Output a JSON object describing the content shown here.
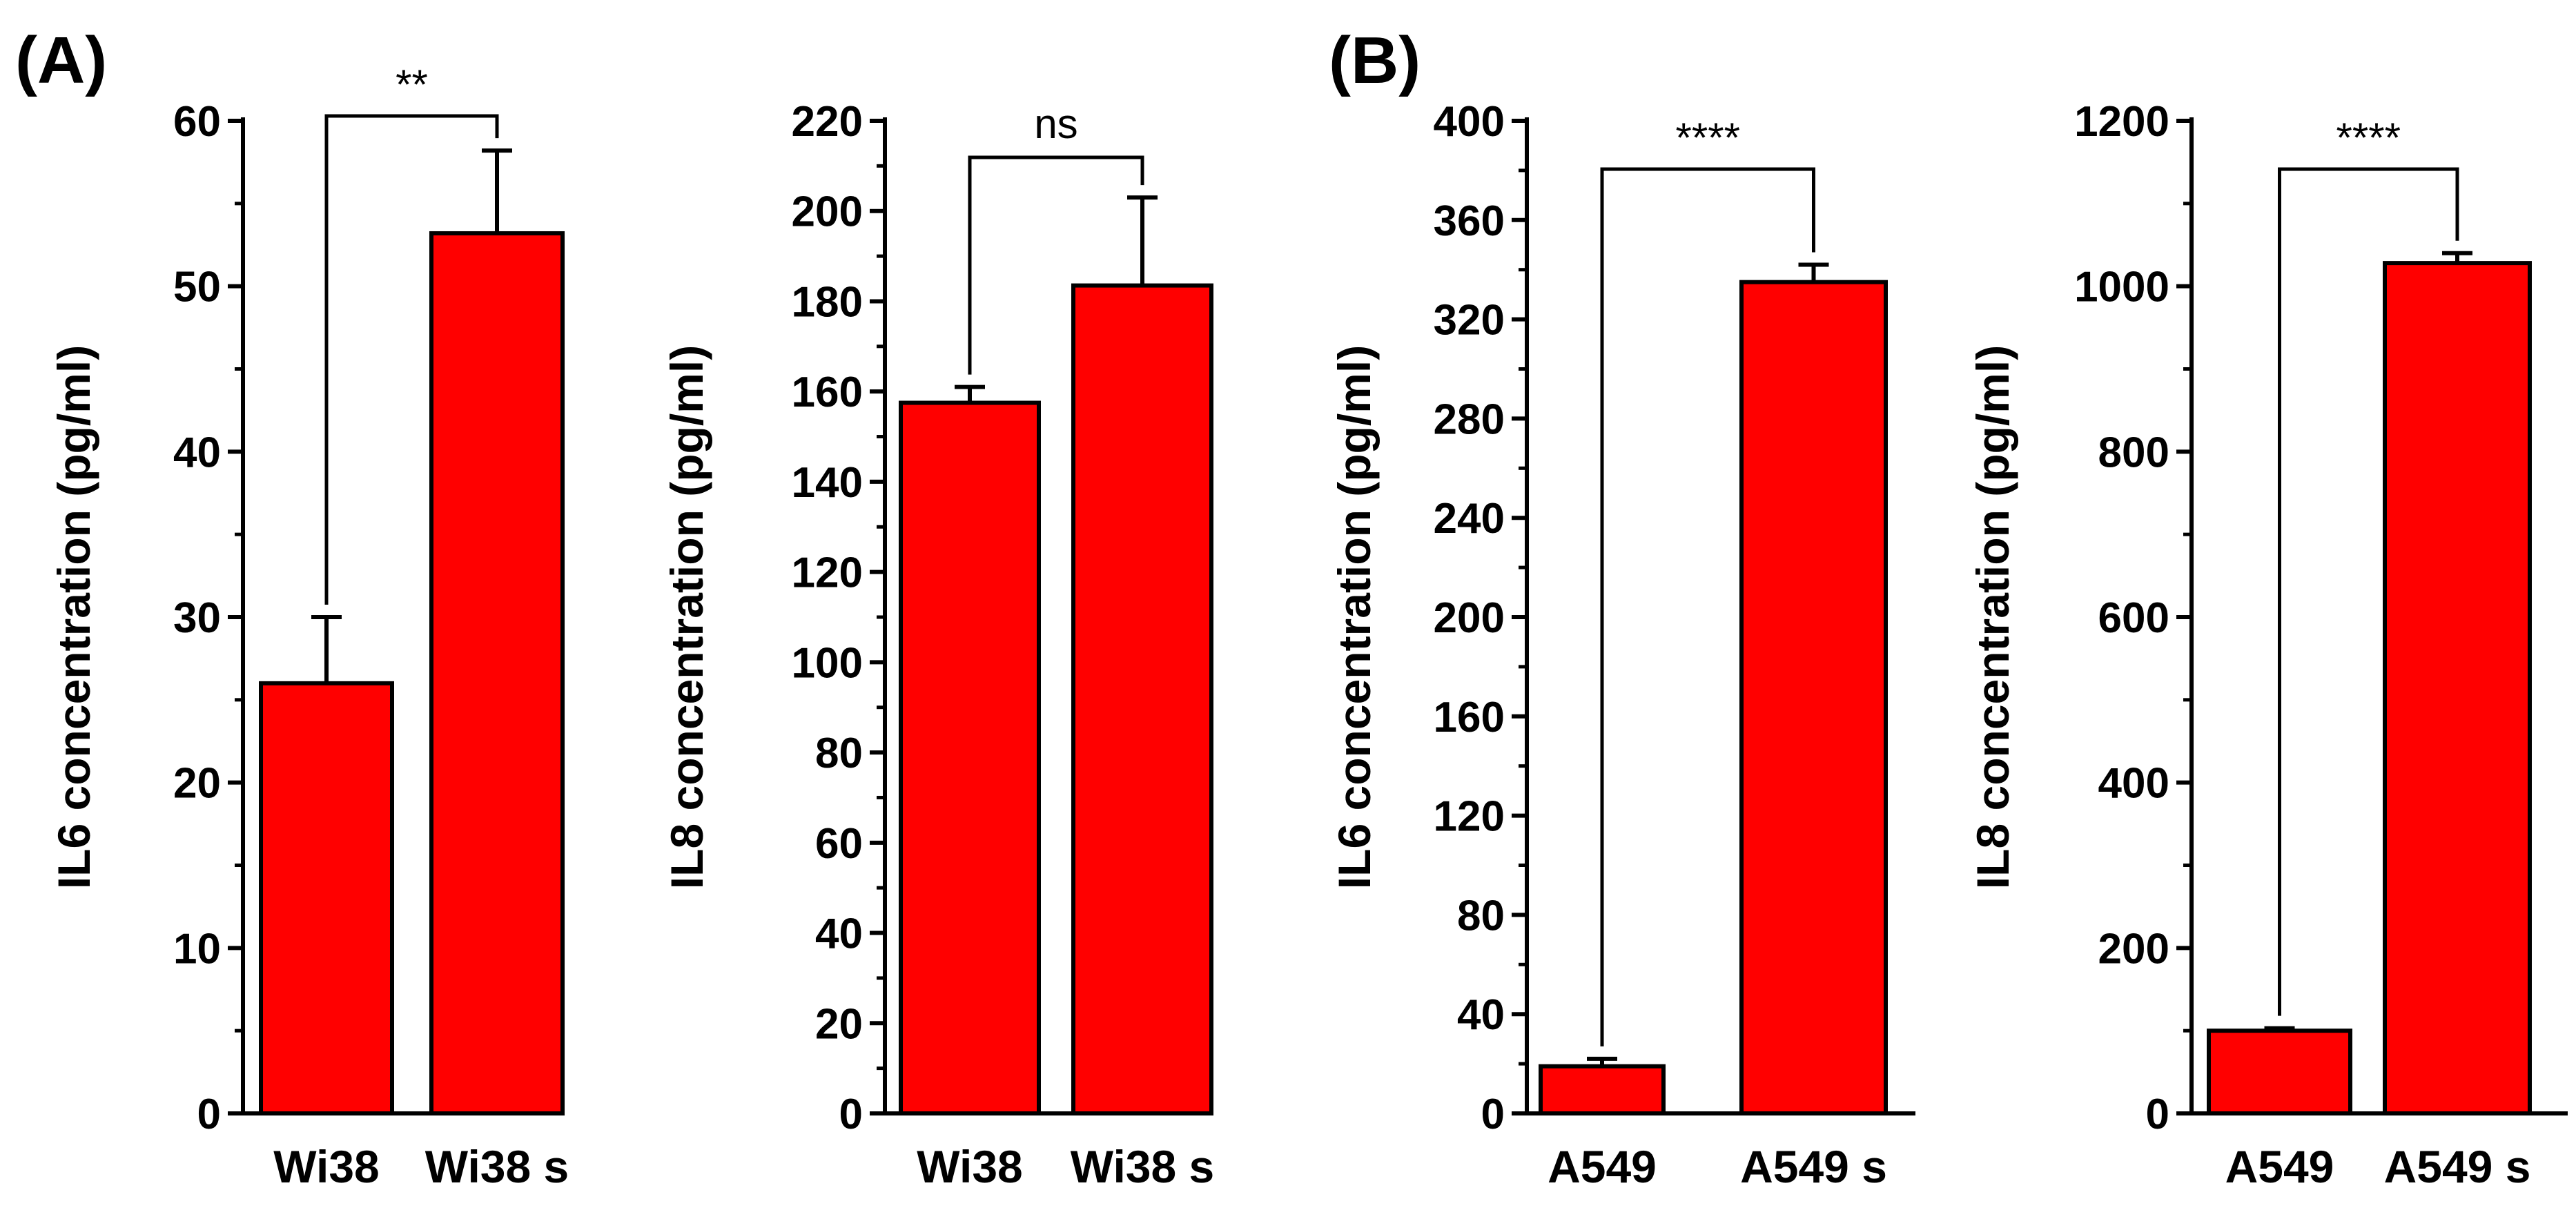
{
  "panel_labels": [
    "(A)",
    "(B)"
  ],
  "colors": {
    "bar": "#ff0000",
    "stroke": "#000000"
  },
  "chart_data": [
    {
      "type": "bar",
      "panel": "(A)",
      "categories": [
        "Wi38",
        "Wi38 s"
      ],
      "values": [
        26,
        53.2
      ],
      "errors": [
        4,
        5
      ],
      "ylabel": "IL6 concentration (pg/ml)",
      "ylim": [
        0,
        60
      ],
      "yticks": [
        0,
        10,
        20,
        30,
        40,
        50,
        60
      ],
      "significance": "**"
    },
    {
      "type": "bar",
      "panel": "",
      "categories": [
        "Wi38",
        "Wi38 s"
      ],
      "values": [
        157.5,
        183.5
      ],
      "errors": [
        3.5,
        19.5
      ],
      "ylabel": "IL8 concentration (pg/ml)",
      "ylim": [
        0,
        220
      ],
      "yticks": [
        0,
        20,
        40,
        60,
        80,
        100,
        120,
        140,
        160,
        180,
        200,
        220
      ],
      "significance": "ns"
    },
    {
      "type": "bar",
      "panel": "(B)",
      "categories": [
        "A549",
        "A549 s"
      ],
      "values": [
        19,
        335
      ],
      "errors": [
        3,
        7
      ],
      "ylabel": "IL6 concentration (pg/ml)",
      "ylim": [
        0,
        400
      ],
      "yticks": [
        0,
        40,
        80,
        120,
        160,
        200,
        240,
        280,
        320,
        360,
        400
      ],
      "significance": "****"
    },
    {
      "type": "bar",
      "panel": "",
      "categories": [
        "A549",
        "A549 s"
      ],
      "values": [
        100,
        1028
      ],
      "errors": [
        3,
        12
      ],
      "ylabel": "IL8 concentration (pg/ml)",
      "ylim": [
        0,
        1200
      ],
      "yticks": [
        0,
        200,
        400,
        600,
        800,
        1000,
        1200
      ],
      "significance": "****"
    }
  ]
}
